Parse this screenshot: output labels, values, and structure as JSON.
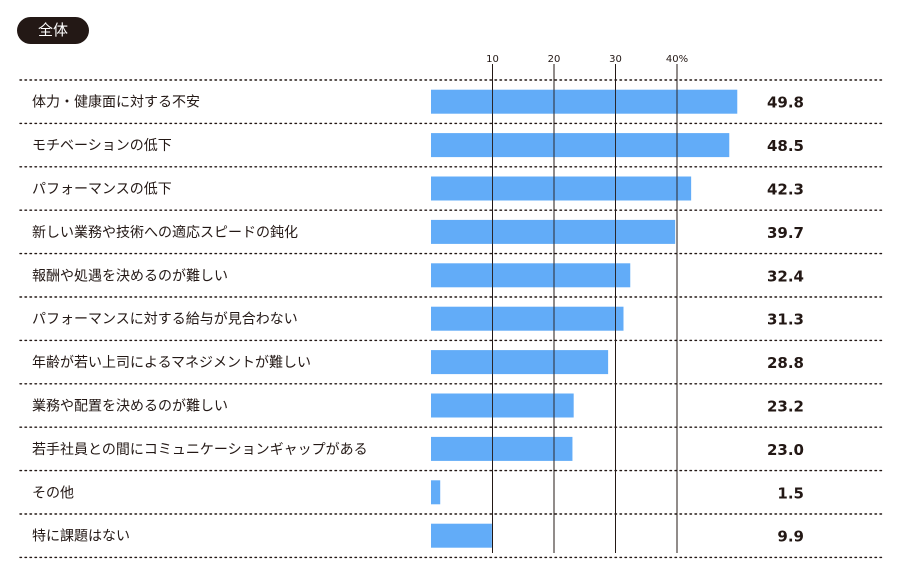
{
  "badge": {
    "label": "全体"
  },
  "chart_data": {
    "type": "bar",
    "orientation": "horizontal",
    "title": "",
    "xlabel": "",
    "ylabel": "",
    "xlim": [
      0,
      50
    ],
    "ticks": [
      {
        "value": 10,
        "label": "10"
      },
      {
        "value": 20,
        "label": "20"
      },
      {
        "value": 30,
        "label": "30"
      },
      {
        "value": 40,
        "label": "40%"
      }
    ],
    "grid": true,
    "bar_color": "#62acf8",
    "categories": [
      "体力・健康面に対する不安",
      "モチベーションの低下",
      "パフォーマンスの低下",
      "新しい業務や技術への適応スピードの鈍化",
      "報酬や処遇を決めるのが難しい",
      "パフォーマンスに対する給与が見合わない",
      "年齢が若い上司によるマネジメントが難しい",
      "業務や配置を決めるのが難しい",
      "若手社員との間にコミュニケーションギャップがある",
      "その他",
      "特に課題はない"
    ],
    "values": [
      49.8,
      48.5,
      42.3,
      39.7,
      32.4,
      31.3,
      28.8,
      23.2,
      23.0,
      1.5,
      9.9
    ],
    "value_labels": [
      "49.8",
      "48.5",
      "42.3",
      "39.7",
      "32.4",
      "31.3",
      "28.8",
      "23.2",
      "23.0",
      "1.5",
      "9.9"
    ]
  }
}
